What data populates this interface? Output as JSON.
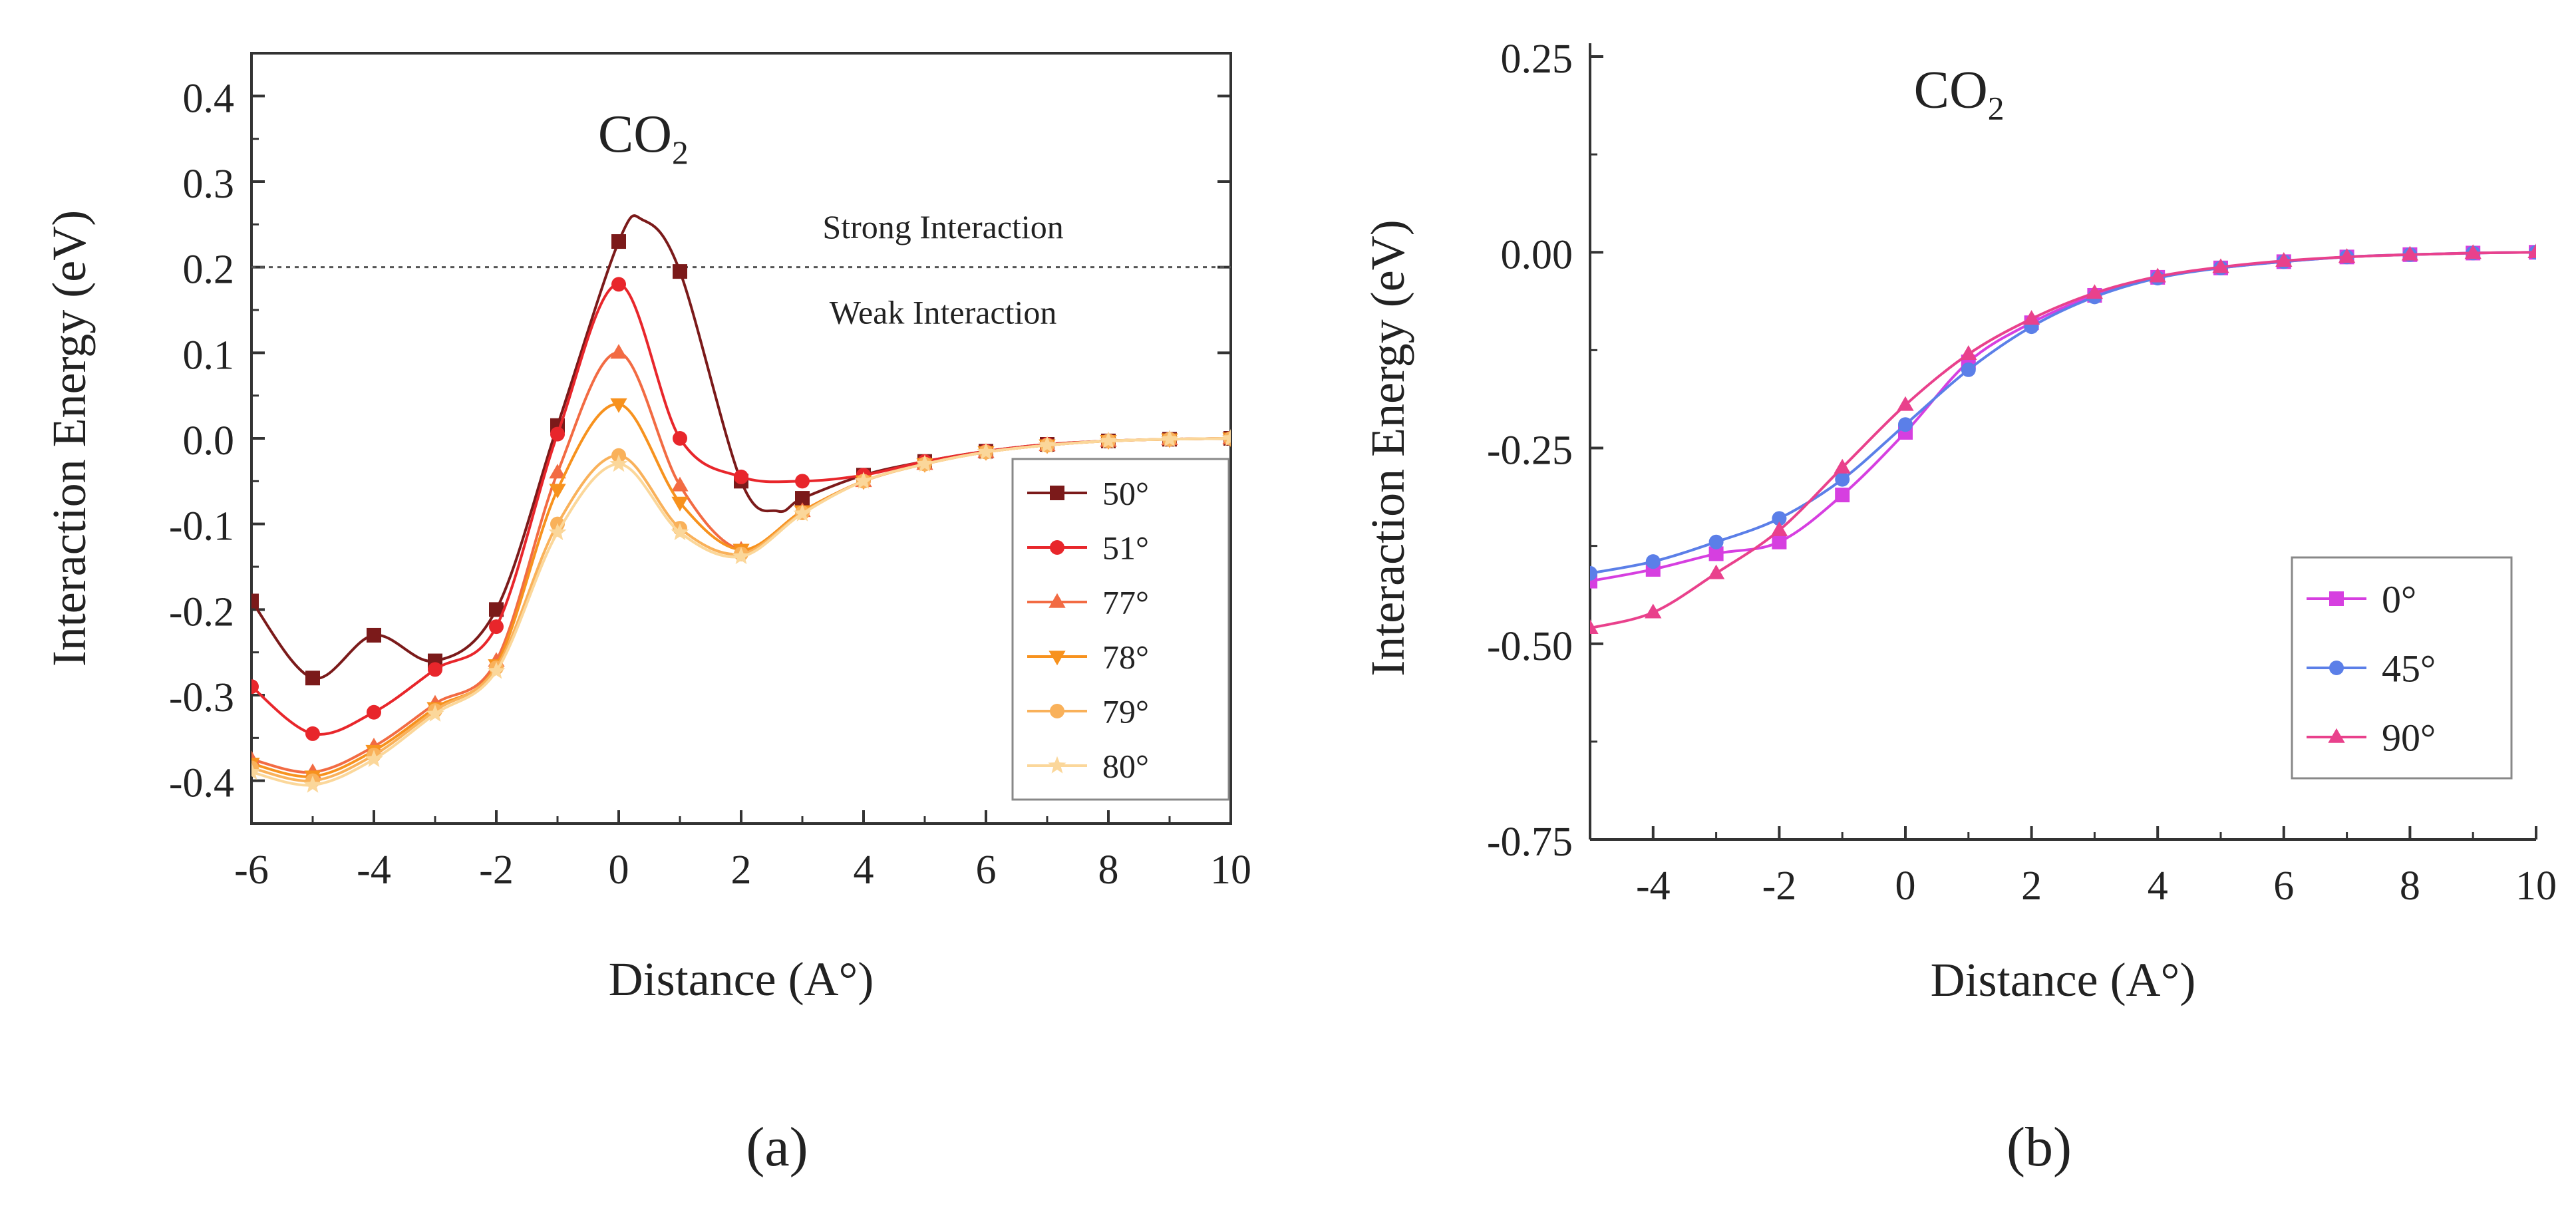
{
  "figure": {
    "caption_a": "(a)",
    "caption_b": "(b)"
  },
  "chart_data": [
    {
      "id": "a",
      "type": "line",
      "title": "CO2",
      "title_main": "CO",
      "title_sub": "2",
      "xlabel": "Distance (A°)",
      "ylabel": "Interaction Energy (eV)",
      "xlim": [
        -6,
        10
      ],
      "ylim": [
        -0.45,
        0.45
      ],
      "xticks": [
        -6,
        -4,
        -2,
        0,
        2,
        4,
        6,
        8,
        10
      ],
      "xtick_labels": [
        "-6",
        "-4",
        "-2",
        "0",
        "2",
        "4",
        "6",
        "8",
        "10"
      ],
      "yticks": [
        -0.4,
        -0.3,
        -0.2,
        -0.1,
        0.0,
        0.1,
        0.2,
        0.3,
        0.4
      ],
      "ytick_labels": [
        "-0.4",
        "-0.3",
        "-0.2",
        "-0.1",
        "0.0",
        "0.1",
        "0.2",
        "0.3",
        "0.4"
      ],
      "grid": false,
      "legend_position": "right-middle",
      "reference_line": {
        "y": 0.2,
        "style": "dotted"
      },
      "annotations": [
        {
          "text": "Strong Interaction",
          "x": 5.3,
          "y": 0.245
        },
        {
          "text": "Weak Interaction",
          "x": 5.3,
          "y": 0.145
        }
      ],
      "series": [
        {
          "name": "50°",
          "color": "#7b1a1a",
          "marker": "square",
          "x": [
            -6,
            -5,
            -4,
            -3,
            -2,
            -1,
            0,
            1,
            2,
            3,
            4,
            5,
            6,
            7,
            8,
            9,
            10
          ],
          "y": [
            -0.19,
            -0.28,
            -0.23,
            -0.26,
            -0.2,
            0.015,
            0.23,
            0.195,
            -0.05,
            -0.07,
            -0.043,
            -0.027,
            -0.015,
            -0.007,
            -0.003,
            -0.001,
            0.0
          ],
          "smooth_extra": [
            [
              0.4,
              0.255
            ],
            [
              2.6,
              -0.085
            ]
          ]
        },
        {
          "name": "51°",
          "color": "#e8262b",
          "marker": "circle",
          "x": [
            -6,
            -5,
            -4,
            -3,
            -2,
            -1,
            0,
            1,
            2,
            3,
            4,
            5,
            6,
            7,
            8,
            9,
            10
          ],
          "y": [
            -0.29,
            -0.345,
            -0.32,
            -0.27,
            -0.22,
            0.005,
            0.18,
            0.0,
            -0.045,
            -0.05,
            -0.043,
            -0.027,
            -0.015,
            -0.007,
            -0.003,
            -0.001,
            0.0
          ]
        },
        {
          "name": "77°",
          "color": "#f26b43",
          "marker": "triangle-up",
          "x": [
            -6,
            -5,
            -4,
            -3,
            -2,
            -1,
            0,
            1,
            2,
            3,
            4,
            5,
            6,
            7,
            8,
            9,
            10
          ],
          "y": [
            -0.375,
            -0.39,
            -0.36,
            -0.31,
            -0.26,
            -0.04,
            0.1,
            -0.055,
            -0.13,
            -0.085,
            -0.05,
            -0.03,
            -0.016,
            -0.008,
            -0.003,
            -0.001,
            0.0
          ]
        },
        {
          "name": "78°",
          "color": "#f7921e",
          "marker": "triangle-down",
          "x": [
            -6,
            -5,
            -4,
            -3,
            -2,
            -1,
            0,
            1,
            2,
            3,
            4,
            5,
            6,
            7,
            8,
            9,
            10
          ],
          "y": [
            -0.38,
            -0.395,
            -0.365,
            -0.315,
            -0.265,
            -0.06,
            0.04,
            -0.075,
            -0.13,
            -0.085,
            -0.05,
            -0.03,
            -0.016,
            -0.008,
            -0.003,
            -0.001,
            0.0
          ]
        },
        {
          "name": "79°",
          "color": "#f9b15a",
          "marker": "circle",
          "x": [
            -6,
            -5,
            -4,
            -3,
            -2,
            -1,
            0,
            1,
            2,
            3,
            4,
            5,
            6,
            7,
            8,
            9,
            10
          ],
          "y": [
            -0.385,
            -0.4,
            -0.37,
            -0.318,
            -0.268,
            -0.1,
            -0.02,
            -0.105,
            -0.135,
            -0.087,
            -0.05,
            -0.03,
            -0.016,
            -0.008,
            -0.003,
            -0.001,
            0.0
          ]
        },
        {
          "name": "80°",
          "color": "#fbd79a",
          "marker": "star",
          "x": [
            -6,
            -5,
            -4,
            -3,
            -2,
            -1,
            0,
            1,
            2,
            3,
            4,
            5,
            6,
            7,
            8,
            9,
            10
          ],
          "y": [
            -0.39,
            -0.405,
            -0.375,
            -0.322,
            -0.272,
            -0.11,
            -0.03,
            -0.11,
            -0.138,
            -0.088,
            -0.05,
            -0.03,
            -0.016,
            -0.008,
            -0.003,
            -0.001,
            0.0
          ]
        }
      ]
    },
    {
      "id": "b",
      "type": "line",
      "title": "CO2",
      "title_main": "CO",
      "title_sub": "2",
      "xlabel": "Distance (A°)",
      "ylabel": "Interaction Energy (eV)",
      "xlim": [
        -5,
        10
      ],
      "ylim": [
        -0.75,
        0.25
      ],
      "xticks": [
        -4,
        -2,
        0,
        2,
        4,
        6,
        8,
        10
      ],
      "xtick_labels": [
        "-4",
        "-2",
        "0",
        "2",
        "4",
        "6",
        "8",
        "10"
      ],
      "yticks": [
        -0.75,
        -0.5,
        -0.25,
        0.0,
        0.25
      ],
      "ytick_labels": [
        "-0.75",
        "-0.50",
        "-0.25",
        "0.00",
        "0.25"
      ],
      "grid": false,
      "legend_position": "right-lower",
      "series": [
        {
          "name": "0°",
          "color": "#d63fe0",
          "marker": "square",
          "x": [
            -5,
            -4,
            -3,
            -2,
            -1,
            0,
            1,
            2,
            3,
            4,
            5,
            6,
            7,
            8,
            9,
            10
          ],
          "y": [
            -0.42,
            -0.405,
            -0.385,
            -0.37,
            -0.31,
            -0.23,
            -0.14,
            -0.09,
            -0.055,
            -0.032,
            -0.02,
            -0.012,
            -0.006,
            -0.003,
            -0.001,
            0.0
          ]
        },
        {
          "name": "45°",
          "color": "#5b7fe8",
          "marker": "circle",
          "x": [
            -5,
            -4,
            -3,
            -2,
            -1,
            0,
            1,
            2,
            3,
            4,
            5,
            6,
            7,
            8,
            9,
            10
          ],
          "y": [
            -0.41,
            -0.395,
            -0.37,
            -0.34,
            -0.29,
            -0.22,
            -0.15,
            -0.095,
            -0.057,
            -0.033,
            -0.02,
            -0.012,
            -0.006,
            -0.003,
            -0.001,
            0.0
          ]
        },
        {
          "name": "90°",
          "color": "#e9418c",
          "marker": "triangle-up",
          "x": [
            -5,
            -4,
            -3,
            -2,
            -1,
            0,
            1,
            2,
            3,
            4,
            5,
            6,
            7,
            8,
            9,
            10
          ],
          "y": [
            -0.48,
            -0.46,
            -0.41,
            -0.355,
            -0.275,
            -0.195,
            -0.13,
            -0.085,
            -0.052,
            -0.031,
            -0.019,
            -0.011,
            -0.006,
            -0.003,
            -0.001,
            0.0
          ]
        }
      ]
    }
  ]
}
